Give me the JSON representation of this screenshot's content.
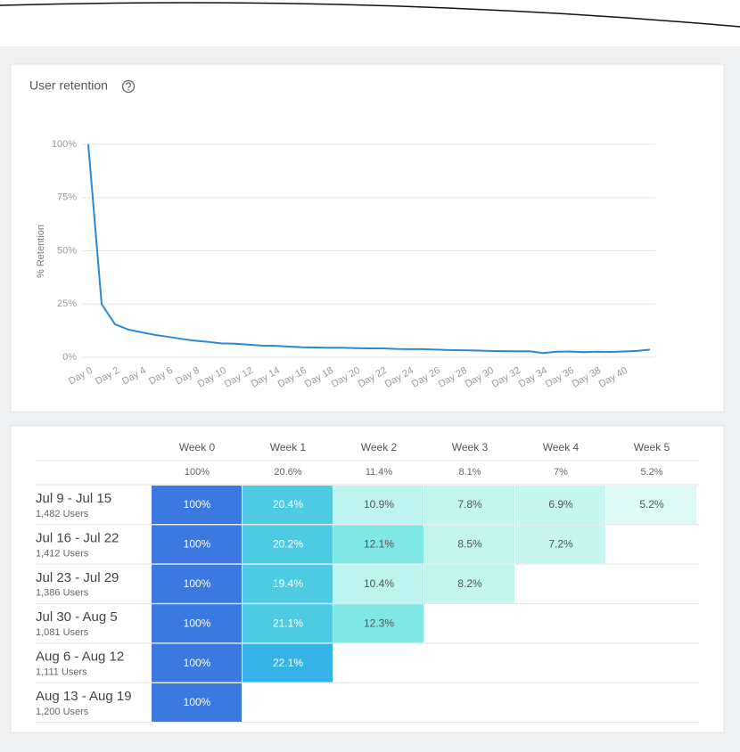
{
  "card_title": "User retention",
  "chart_data": {
    "type": "line",
    "y_label": "% Retention",
    "categories": [
      "Day 0",
      null,
      "Day 2",
      null,
      "Day 4",
      null,
      "Day 6",
      null,
      "Day 8",
      null,
      "Day 10",
      null,
      "Day 12",
      null,
      "Day 14",
      null,
      "Day 16",
      null,
      "Day 18",
      null,
      "Day 20",
      null,
      "Day 22",
      null,
      "Day 24",
      null,
      "Day 26",
      null,
      "Day 28",
      null,
      "Day 30",
      null,
      "Day 32",
      null,
      "Day 34",
      null,
      "Day 36",
      null,
      "Day 38",
      null,
      "Day 40",
      null,
      null
    ],
    "values": [
      100,
      25,
      15.5,
      13,
      11.7,
      10.5,
      9.6,
      8.6,
      7.8,
      7.2,
      6.5,
      6.4,
      5.9,
      5.5,
      5.4,
      5,
      4.7,
      4.6,
      4.5,
      4.5,
      4.3,
      4.2,
      4.2,
      3.9,
      3.8,
      3.8,
      3.6,
      3.4,
      3.3,
      3.2,
      3,
      2.9,
      2.8,
      2.8,
      2,
      2.6,
      2.7,
      2.4,
      2.6,
      2.5,
      2.7,
      3,
      3.6
    ],
    "color": "#2a8ad8",
    "ylim": [
      0,
      100
    ],
    "yticks": [
      {
        "value": 0,
        "label": "0%"
      },
      {
        "value": 25,
        "label": "25%"
      },
      {
        "value": 50,
        "label": "50%"
      },
      {
        "value": 75,
        "label": "75%"
      },
      {
        "value": 100,
        "label": "100%"
      }
    ],
    "grid": true
  },
  "table": {
    "columns": [
      "Week 0",
      "Week 1",
      "Week 2",
      "Week 3",
      "Week 4",
      "Week 5"
    ],
    "summary": [
      "100%",
      "20.6%",
      "11.4%",
      "8.1%",
      "7%",
      "5.2%"
    ],
    "rows": [
      {
        "label": "Jul 9 - Jul 15",
        "users": "1,482 Users",
        "cells": [
          {
            "text": "100%",
            "color": "#3b78e0"
          },
          {
            "text": "20.4%",
            "color": "#4ccbe2"
          },
          {
            "text": "10.9%",
            "color": "#bdf4ef"
          },
          {
            "text": "7.8%",
            "color": "#c3f5f0"
          },
          {
            "text": "6.9%",
            "color": "#c6f6f1"
          },
          {
            "text": "5.2%",
            "color": "#dcf9f5"
          }
        ]
      },
      {
        "label": "Jul 16 - Jul 22",
        "users": "1,412 Users",
        "cells": [
          {
            "text": "100%",
            "color": "#3b78e0"
          },
          {
            "text": "20.2%",
            "color": "#4ccbe2"
          },
          {
            "text": "12.1%",
            "color": "#7fe7e6"
          },
          {
            "text": "8.5%",
            "color": "#c3f5f0"
          },
          {
            "text": "7.2%",
            "color": "#c6f6f1"
          }
        ]
      },
      {
        "label": "Jul 23 - Jul 29",
        "users": "1,386 Users",
        "cells": [
          {
            "text": "100%",
            "color": "#3b78e0"
          },
          {
            "text": "19.4%",
            "color": "#4ccbe2"
          },
          {
            "text": "10.4%",
            "color": "#bdf4ef"
          },
          {
            "text": "8.2%",
            "color": "#c3f5f0"
          }
        ]
      },
      {
        "label": "Jul 30 - Aug 5",
        "users": "1,081 Users",
        "cells": [
          {
            "text": "100%",
            "color": "#3b78e0"
          },
          {
            "text": "21.1%",
            "color": "#4ccbe2"
          },
          {
            "text": "12.3%",
            "color": "#7fe7e6"
          }
        ]
      },
      {
        "label": "Aug 6 - Aug 12",
        "users": "1,111 Users",
        "cells": [
          {
            "text": "100%",
            "color": "#3b78e0"
          },
          {
            "text": "22.1%",
            "color": "#35b2e6"
          }
        ]
      },
      {
        "label": "Aug 13 - Aug 19",
        "users": "1,200 Users",
        "cells": [
          {
            "text": "100%",
            "color": "#3b78e0"
          }
        ]
      }
    ]
  }
}
